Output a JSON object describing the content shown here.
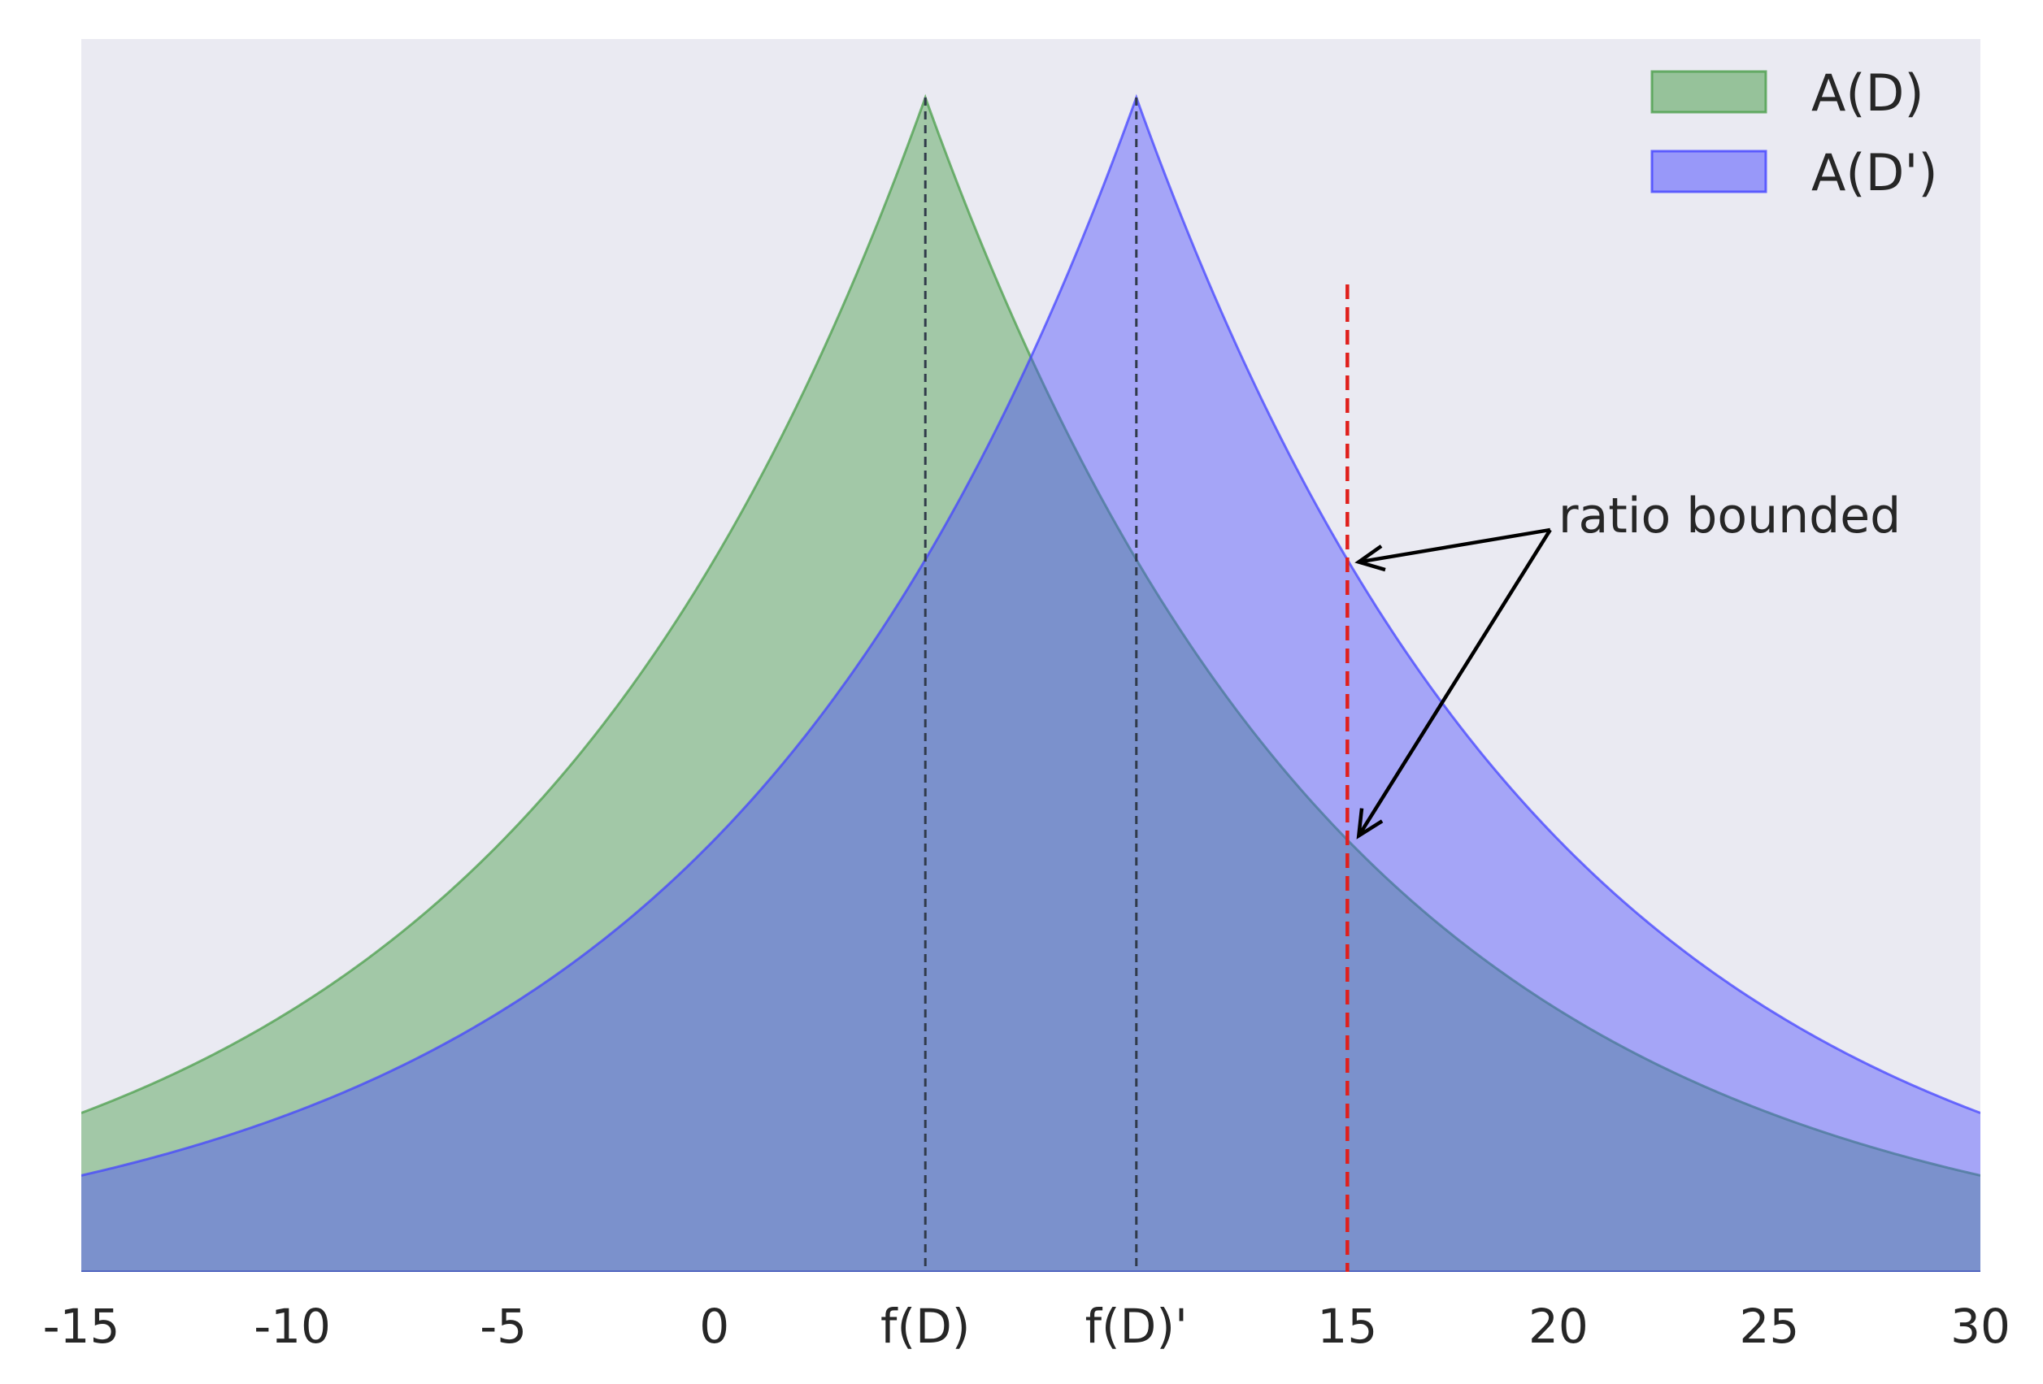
{
  "chart_data": {
    "type": "area",
    "xlim": [
      -15,
      30
    ],
    "grid": false,
    "legend_placement": "top-right",
    "background_color": "#eaeaf2",
    "x_ticks": [
      {
        "value": -15,
        "label": "-15"
      },
      {
        "value": -10,
        "label": "-10"
      },
      {
        "value": -5,
        "label": "-5"
      },
      {
        "value": 0,
        "label": "0"
      },
      {
        "value": 5,
        "label": "f(D)"
      },
      {
        "value": 10,
        "label": "f(D)'"
      },
      {
        "value": 15,
        "label": "15"
      },
      {
        "value": 20,
        "label": "20"
      },
      {
        "value": 25,
        "label": "25"
      },
      {
        "value": 30,
        "label": "30"
      }
    ],
    "series": [
      {
        "name": "A(D)",
        "distribution": "laplace",
        "center": 5,
        "scale": 10,
        "color": "#4c9f4c",
        "fill_opacity": 0.45
      },
      {
        "name": "A(D')",
        "distribution": "laplace",
        "center": 10,
        "scale": 10,
        "color": "#4545ff",
        "fill_opacity": 0.42
      }
    ],
    "reference_lines": [
      {
        "x": 5,
        "style": "dashed",
        "color": "#303a4a"
      },
      {
        "x": 10,
        "style": "dashed",
        "color": "#303a4a"
      },
      {
        "x": 15,
        "style": "dashed",
        "color": "#e0201c"
      }
    ],
    "annotation": {
      "text": "ratio bounded",
      "x": 20,
      "targets": [
        {
          "x": 15,
          "series": "A(D')"
        },
        {
          "x": 15,
          "series": "A(D)"
        }
      ]
    }
  }
}
